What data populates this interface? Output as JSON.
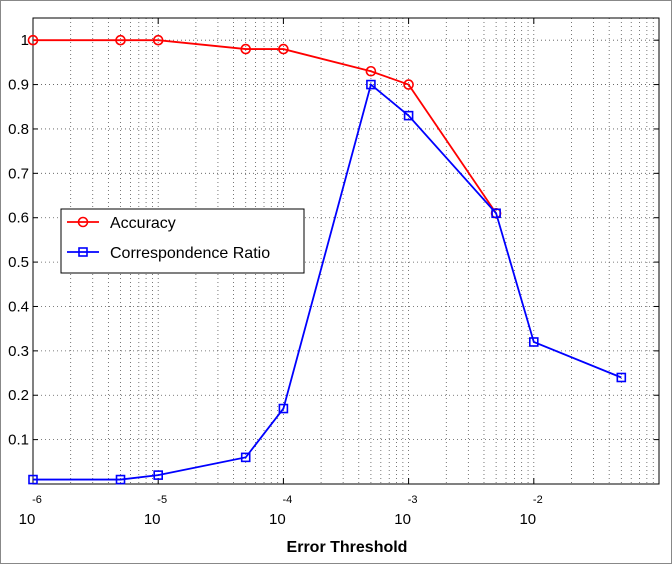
{
  "chart_data": {
    "type": "line",
    "title": "",
    "xlabel": "Error Threshold",
    "ylabel": "",
    "xscale": "log",
    "xlim": [
      1e-06,
      0.1
    ],
    "ylim": [
      0,
      1.05
    ],
    "grid": true,
    "legend_position": "left",
    "x_ticks": [
      {
        "base": "10",
        "exp": "-6"
      },
      {
        "base": "10",
        "exp": "-5"
      },
      {
        "base": "10",
        "exp": "-4"
      },
      {
        "base": "10",
        "exp": "-3"
      },
      {
        "base": "10",
        "exp": "-2"
      }
    ],
    "y_ticks": [
      "0.1",
      "0.2",
      "0.3",
      "0.4",
      "0.5",
      "0.6",
      "0.7",
      "0.8",
      "0.9",
      "1"
    ],
    "series": [
      {
        "name": "Accuracy",
        "color": "#ff0000",
        "marker": "circle",
        "x": [
          1e-06,
          5e-06,
          1e-05,
          5e-05,
          0.0001,
          0.0005,
          0.001,
          0.005
        ],
        "y": [
          1.0,
          1.0,
          1.0,
          0.98,
          0.98,
          0.93,
          0.9,
          0.61
        ]
      },
      {
        "name": "Correspondence Ratio",
        "color": "#0000ff",
        "marker": "square",
        "x": [
          1e-06,
          5e-06,
          1e-05,
          5e-05,
          0.0001,
          0.0005,
          0.001,
          0.005,
          0.01,
          0.05
        ],
        "y": [
          0.01,
          0.01,
          0.02,
          0.06,
          0.17,
          0.9,
          0.83,
          0.61,
          0.32,
          0.24
        ]
      }
    ]
  }
}
